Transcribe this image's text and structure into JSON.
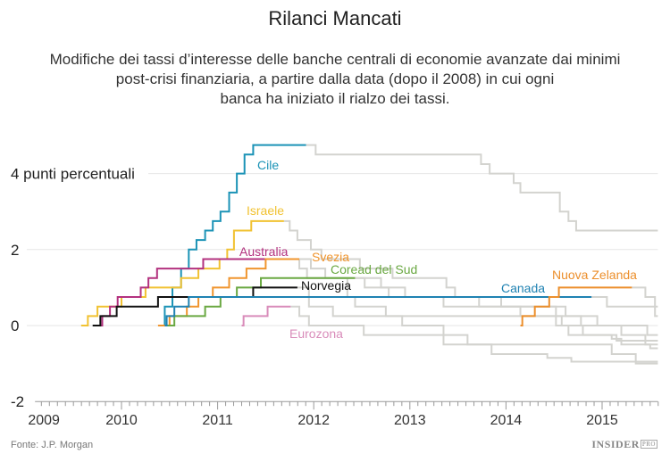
{
  "title": "Rilanci Mancati",
  "subtitle": [
    "Modifiche dei tassi d’interesse delle banche centrali di economie avanzate dai minimi",
    "post-crisi finanziaria, a partire dalla data (dopo il 2008) in cui ogni",
    "banca ha iniziato il rialzo dei tassi."
  ],
  "source": "Fonte: J.P. Morgan",
  "logo": {
    "main": "INSIDER",
    "badge": "PRO"
  },
  "chart_data": {
    "type": "line",
    "step": true,
    "title": "Rilanci Mancati",
    "xlabel": "",
    "ylabel": "",
    "xlim": [
      2009.1,
      2015.58
    ],
    "ylim": [
      -2,
      4.9
    ],
    "x_ticks": [
      "2009",
      "2010",
      "2011",
      "2012",
      "2013",
      "2014",
      "2015"
    ],
    "y_ticks": [
      {
        "value": 4,
        "label": "4 punti percentuali"
      },
      {
        "value": 2,
        "label": "2"
      },
      {
        "value": 0,
        "label": "0"
      },
      {
        "value": -2,
        "label": "-2"
      }
    ],
    "grid": true,
    "later_color": "#d3d3cf",
    "series": [
      {
        "name": "Cile",
        "color": "#1b93b6",
        "highlight_until": 2011.92,
        "points": [
          [
            2010.4,
            0
          ],
          [
            2010.45,
            0.5
          ],
          [
            2010.53,
            1.0
          ],
          [
            2010.62,
            1.5
          ],
          [
            2010.7,
            2.0
          ],
          [
            2010.78,
            2.25
          ],
          [
            2010.87,
            2.5
          ],
          [
            2010.95,
            2.75
          ],
          [
            2011.03,
            3.0
          ],
          [
            2011.12,
            3.5
          ],
          [
            2011.2,
            4.0
          ],
          [
            2011.28,
            4.5
          ],
          [
            2011.37,
            4.75
          ],
          [
            2012.02,
            4.5
          ],
          [
            2013.74,
            4.25
          ],
          [
            2013.83,
            4.0
          ],
          [
            2014.08,
            3.75
          ],
          [
            2014.15,
            3.5
          ],
          [
            2014.56,
            3.0
          ],
          [
            2014.65,
            2.75
          ],
          [
            2014.73,
            2.5
          ]
        ]
      },
      {
        "name": "Israele",
        "color": "#f1c232",
        "highlight_until": 2011.69,
        "points": [
          [
            2009.58,
            0
          ],
          [
            2009.65,
            0.25
          ],
          [
            2009.75,
            0.5
          ],
          [
            2010.0,
            0.75
          ],
          [
            2010.25,
            1.0
          ],
          [
            2010.62,
            1.25
          ],
          [
            2010.8,
            1.5
          ],
          [
            2011.02,
            1.75
          ],
          [
            2011.1,
            2.0
          ],
          [
            2011.17,
            2.5
          ],
          [
            2011.35,
            2.75
          ],
          [
            2011.75,
            2.5
          ],
          [
            2011.83,
            2.25
          ],
          [
            2011.97,
            2.0
          ],
          [
            2012.08,
            1.75
          ],
          [
            2012.48,
            1.5
          ],
          [
            2012.82,
            1.25
          ],
          [
            2013.38,
            1.0
          ],
          [
            2013.47,
            0.75
          ],
          [
            2013.72,
            0.5
          ],
          [
            2014.15,
            0.25
          ],
          [
            2014.58,
            0
          ],
          [
            2014.65,
            -0.25
          ],
          [
            2015.15,
            -0.4
          ]
        ]
      },
      {
        "name": "Australia",
        "color": "#b3327f",
        "highlight_until": 2011.76,
        "points": [
          [
            2009.78,
            0
          ],
          [
            2009.8,
            0.25
          ],
          [
            2009.88,
            0.5
          ],
          [
            2009.96,
            0.75
          ],
          [
            2010.2,
            1.0
          ],
          [
            2010.28,
            1.25
          ],
          [
            2010.37,
            1.5
          ],
          [
            2010.85,
            1.75
          ],
          [
            2011.85,
            1.5
          ],
          [
            2011.93,
            1.25
          ],
          [
            2012.35,
            0.75
          ],
          [
            2012.43,
            0.5
          ],
          [
            2012.75,
            0.25
          ],
          [
            2012.92,
            0
          ],
          [
            2013.35,
            -0.25
          ],
          [
            2013.6,
            -0.5
          ],
          [
            2015.1,
            -0.75
          ],
          [
            2015.35,
            -1.0
          ]
        ]
      },
      {
        "name": "Svezia",
        "color": "#f0952e",
        "highlight_until": 2011.85,
        "points": [
          [
            2010.38,
            0
          ],
          [
            2010.5,
            0.25
          ],
          [
            2010.68,
            0.5
          ],
          [
            2010.8,
            0.75
          ],
          [
            2010.95,
            1.0
          ],
          [
            2011.12,
            1.25
          ],
          [
            2011.3,
            1.5
          ],
          [
            2011.5,
            1.75
          ],
          [
            2011.97,
            1.5
          ],
          [
            2012.12,
            1.25
          ],
          [
            2012.7,
            1.0
          ],
          [
            2012.95,
            0.75
          ],
          [
            2013.95,
            0.5
          ],
          [
            2014.52,
            0
          ],
          [
            2014.8,
            -0.25
          ],
          [
            2015.1,
            -0.35
          ],
          [
            2015.2,
            -0.5
          ],
          [
            2015.5,
            -0.6
          ]
        ]
      },
      {
        "name": "Coread del Sud",
        "color": "#6aa842",
        "highlight_until": 2012.43,
        "points": [
          [
            2010.45,
            0
          ],
          [
            2010.55,
            0.25
          ],
          [
            2010.87,
            0.5
          ],
          [
            2011.03,
            0.75
          ],
          [
            2011.2,
            1.0
          ],
          [
            2011.45,
            1.25
          ],
          [
            2012.53,
            1.0
          ],
          [
            2012.78,
            0.75
          ],
          [
            2013.35,
            0.5
          ],
          [
            2014.62,
            0.25
          ],
          [
            2014.78,
            0
          ],
          [
            2015.2,
            -0.25
          ],
          [
            2015.45,
            -0.5
          ]
        ]
      },
      {
        "name": "Norvegia",
        "color": "#111111",
        "highlight_until": 2011.83,
        "points": [
          [
            2009.7,
            0
          ],
          [
            2009.78,
            0.25
          ],
          [
            2009.95,
            0.5
          ],
          [
            2010.38,
            0.75
          ],
          [
            2011.37,
            1.0
          ],
          [
            2011.95,
            0.5
          ],
          [
            2012.2,
            0.25
          ],
          [
            2014.95,
            0
          ],
          [
            2015.47,
            -0.25
          ]
        ]
      },
      {
        "name": "Canada",
        "color": "#1f82b2",
        "highlight_until": 2014.89,
        "points": [
          [
            2010.45,
            0
          ],
          [
            2010.47,
            0.25
          ],
          [
            2010.55,
            0.5
          ],
          [
            2010.7,
            0.75
          ],
          [
            2015.05,
            0.5
          ],
          [
            2015.55,
            0.25
          ]
        ]
      },
      {
        "name": "Nuova Zelanda",
        "color": "#ec8f2c",
        "highlight_until": 2015.31,
        "points": [
          [
            2014.15,
            0
          ],
          [
            2014.17,
            0.25
          ],
          [
            2014.3,
            0.5
          ],
          [
            2014.45,
            0.75
          ],
          [
            2014.55,
            1.0
          ],
          [
            2015.45,
            0.75
          ],
          [
            2015.55,
            0.5
          ]
        ]
      },
      {
        "name": "Eurozona",
        "color": "#d98cba",
        "highlight_until": 2011.76,
        "points": [
          [
            2011.25,
            0
          ],
          [
            2011.27,
            0.25
          ],
          [
            2011.52,
            0.5
          ],
          [
            2011.85,
            0.25
          ],
          [
            2011.95,
            0
          ],
          [
            2012.52,
            -0.25
          ],
          [
            2013.35,
            -0.5
          ],
          [
            2013.85,
            -0.75
          ],
          [
            2014.43,
            -0.85
          ],
          [
            2014.68,
            -0.95
          ]
        ]
      }
    ]
  }
}
